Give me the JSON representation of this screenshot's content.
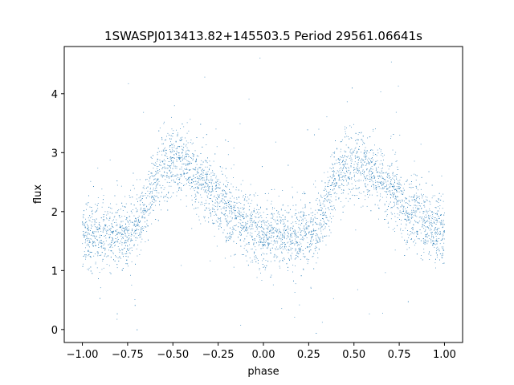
{
  "chart_data": {
    "type": "scatter",
    "title": "1SWASPJ013413.82+145503.5 Period 29561.06641s",
    "xlabel": "phase",
    "ylabel": "flux",
    "xlim": [
      -1.1,
      1.1
    ],
    "ylim": [
      -0.22,
      4.8
    ],
    "xticks": [
      -1.0,
      -0.75,
      -0.5,
      -0.25,
      0.0,
      0.25,
      0.5,
      0.75,
      1.0
    ],
    "xtick_labels": [
      "−1.00",
      "−0.75",
      "−0.50",
      "−0.25",
      "0.00",
      "0.25",
      "0.50",
      "0.75",
      "1.00"
    ],
    "yticks": [
      0,
      1,
      2,
      3,
      4
    ],
    "ytick_labels": [
      "0",
      "1",
      "2",
      "3",
      "4"
    ],
    "grid": false,
    "legend": "none",
    "point_color": "#1f77b4",
    "series": [
      {
        "x": [
          -1.0,
          -0.95,
          -0.9,
          -0.85,
          -0.8,
          -0.75,
          -0.7,
          -0.65,
          -0.6,
          -0.55,
          -0.5,
          -0.45,
          -0.4,
          -0.35,
          -0.3,
          -0.25,
          -0.2,
          -0.15,
          -0.1,
          -0.05,
          0.0,
          0.05,
          0.1,
          0.15,
          0.2,
          0.25,
          0.3,
          0.35,
          0.4,
          0.45,
          0.5,
          0.55,
          0.6,
          0.65,
          0.7,
          0.75,
          0.8,
          0.85,
          0.9,
          0.95,
          1.0
        ],
        "y": [
          1.62,
          1.6,
          1.58,
          1.57,
          1.58,
          1.62,
          1.75,
          2.1,
          2.55,
          2.78,
          2.85,
          2.82,
          2.7,
          2.52,
          2.38,
          2.22,
          2.05,
          1.9,
          1.78,
          1.68,
          1.62,
          1.6,
          1.58,
          1.57,
          1.58,
          1.62,
          1.75,
          2.1,
          2.55,
          2.78,
          2.85,
          2.82,
          2.7,
          2.52,
          2.38,
          2.22,
          2.05,
          1.9,
          1.78,
          1.68,
          1.62
        ],
        "scatter_band": 0.28
      }
    ]
  }
}
